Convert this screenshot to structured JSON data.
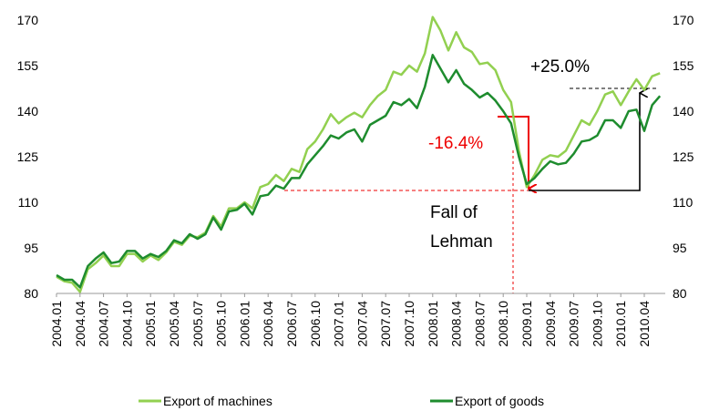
{
  "chart_data": {
    "type": "line",
    "categories": [
      "2004.01",
      null,
      null,
      "2004.04",
      null,
      null,
      "2004.07",
      null,
      null,
      "2004.10",
      null,
      null,
      "2005.01",
      null,
      null,
      "2005.04",
      null,
      null,
      "2005.07",
      null,
      null,
      "2005.10",
      null,
      null,
      "2006.01",
      null,
      null,
      "2006.04",
      null,
      null,
      "2006.07",
      null,
      null,
      "2006.10",
      null,
      null,
      "2007.01",
      null,
      null,
      "2007.04",
      null,
      null,
      "2007.07",
      null,
      null,
      "2007.10",
      null,
      null,
      "2008.01",
      null,
      null,
      "2008.04",
      null,
      null,
      "2008.07",
      null,
      null,
      "2008.10",
      null,
      null,
      "2009.01",
      null,
      null,
      "2009.04",
      null,
      null,
      "2009.07",
      null,
      null,
      "2009.10",
      null,
      null,
      "2010.01",
      null,
      null,
      "2010.04",
      null,
      null
    ],
    "series": [
      {
        "name": "Export of machines",
        "color": "#92d050",
        "values": [
          85.5,
          84,
          83.5,
          80.5,
          88,
          90,
          92.5,
          89,
          89,
          93,
          93,
          90.5,
          92.5,
          91,
          93.5,
          97,
          96,
          99,
          98.5,
          100,
          105.5,
          102,
          108,
          108,
          110,
          108,
          115,
          116,
          119,
          117,
          121,
          120,
          127.5,
          130,
          134,
          139,
          136,
          138,
          139.5,
          138,
          142,
          145,
          147,
          153,
          152,
          155,
          153,
          159,
          171,
          166.5,
          160,
          166,
          161,
          159.5,
          155.5,
          156,
          153.5,
          147,
          143,
          127,
          115,
          119,
          124,
          125.5,
          125,
          127,
          132,
          137,
          135.5,
          140,
          145.5,
          146.5,
          142,
          146.5,
          150.5,
          147,
          151.5,
          152.5
        ]
      },
      {
        "name": "Export of goods",
        "color": "#1e8c2e",
        "values": [
          86,
          84.5,
          84.5,
          82,
          89,
          91.5,
          93.5,
          90,
          90.5,
          94,
          94,
          91.5,
          93,
          92,
          94,
          97.5,
          96.5,
          99.5,
          98,
          99.5,
          105,
          101,
          107,
          107.5,
          109.5,
          106,
          112,
          112.5,
          115.5,
          114.5,
          118,
          118,
          122.5,
          125.5,
          128.5,
          132,
          131,
          133,
          134,
          130,
          135.5,
          137,
          138.5,
          143,
          142,
          144,
          141,
          148,
          158.5,
          154,
          149.5,
          153.5,
          149,
          147,
          144.5,
          146,
          143.5,
          140,
          136,
          125,
          116,
          118,
          121,
          123.5,
          122.5,
          123,
          126,
          130,
          130.5,
          132,
          137,
          137,
          134.5,
          140,
          140.5,
          133.5,
          142,
          145
        ]
      }
    ],
    "ylim": [
      80,
      170
    ],
    "yticks": [
      80,
      95,
      110,
      125,
      140,
      155,
      170
    ],
    "y2lim": [
      80,
      170
    ],
    "y2ticks": [
      80,
      95,
      110,
      125,
      140,
      155,
      170
    ],
    "annotations": [
      "+25.0%",
      "-16.4%",
      "Fall of Lehman"
    ],
    "legend": "bottom"
  }
}
